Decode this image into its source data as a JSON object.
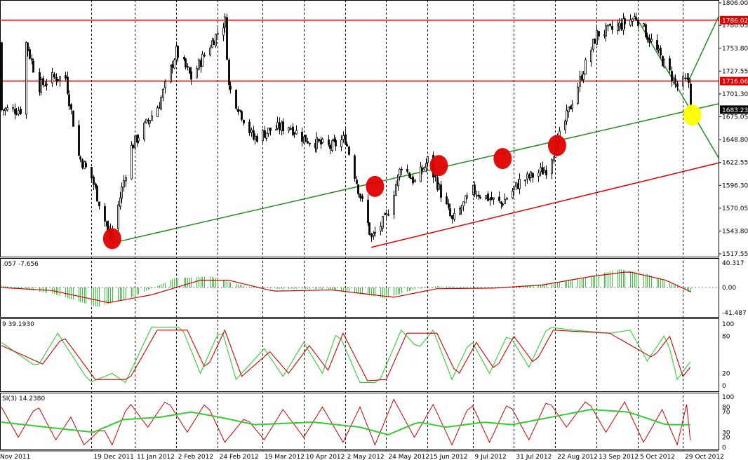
{
  "chart_data": {
    "type": "candlestick",
    "instrument": "Gold",
    "colors": {
      "candle": "#000000",
      "trendline": "#228b22",
      "level": "#e00000",
      "marker_red": "#e00000",
      "marker_yellow": "#ffff00",
      "histogram": "#33cc33",
      "signal": "#cc0000",
      "price_tag_level": "#e00000",
      "price_tag_current": "#000000"
    },
    "price_axis": {
      "ticks": [
        "1806.00",
        "1780.05",
        "1753.80",
        "1727.55",
        "1701.30",
        "1675.05",
        "1648.80",
        "1622.55",
        "1596.30",
        "1570.05",
        "1543.80",
        "1517.55"
      ],
      "ylim": [
        1517.55,
        1806.0
      ]
    },
    "price_tags": [
      {
        "value": 1786.02,
        "label": "1786.02",
        "kind": "level"
      },
      {
        "value": 1716.06,
        "label": "1716.06",
        "kind": "level"
      },
      {
        "value": 1683.23,
        "label": "1683.23",
        "kind": "current"
      }
    ],
    "x_labels": [
      "Nov 2011",
      "19 Dec 2011",
      "11 Jan 2012",
      "2 Feb 2012",
      "24 Feb 2012",
      "19 Mar 2012",
      "10 Apr 2012",
      "2 May 2012",
      "24 May 2012",
      "15 Jun 2012",
      "9 Jul 2012",
      "31 Jul 2012",
      "22 Aug 2012",
      "13 Sep 2012",
      "5 Oct 2012",
      "29 Oct 2012"
    ],
    "x_range": [
      "Nov 2011",
      "Nov 2012"
    ],
    "price_anchors": [
      {
        "date": "2011-11-14",
        "price": 1760
      },
      {
        "date": "2011-11-21",
        "price": 1710
      },
      {
        "date": "2011-11-28",
        "price": 1720
      },
      {
        "date": "2011-12-05",
        "price": 1720
      },
      {
        "date": "2011-12-12",
        "price": 1630
      },
      {
        "date": "2011-12-19",
        "price": 1605
      },
      {
        "date": "2011-12-29",
        "price": 1535
      },
      {
        "date": "2012-01-09",
        "price": 1640
      },
      {
        "date": "2012-01-24",
        "price": 1690
      },
      {
        "date": "2012-02-02",
        "price": 1750
      },
      {
        "date": "2012-02-10",
        "price": 1720
      },
      {
        "date": "2012-02-22",
        "price": 1765
      },
      {
        "date": "2012-02-28",
        "price": 1785
      },
      {
        "date": "2012-03-01",
        "price": 1710
      },
      {
        "date": "2012-03-14",
        "price": 1650
      },
      {
        "date": "2012-03-23",
        "price": 1660
      },
      {
        "date": "2012-04-02",
        "price": 1665
      },
      {
        "date": "2012-04-10",
        "price": 1650
      },
      {
        "date": "2012-04-24",
        "price": 1640
      },
      {
        "date": "2012-05-02",
        "price": 1650
      },
      {
        "date": "2012-05-16",
        "price": 1535
      },
      {
        "date": "2012-05-24",
        "price": 1560
      },
      {
        "date": "2012-06-01",
        "price": 1620
      },
      {
        "date": "2012-06-08",
        "price": 1600
      },
      {
        "date": "2012-06-15",
        "price": 1625
      },
      {
        "date": "2012-06-28",
        "price": 1555
      },
      {
        "date": "2012-07-09",
        "price": 1590
      },
      {
        "date": "2012-07-24",
        "price": 1575
      },
      {
        "date": "2012-08-03",
        "price": 1600
      },
      {
        "date": "2012-08-17",
        "price": 1615
      },
      {
        "date": "2012-08-22",
        "price": 1640
      },
      {
        "date": "2012-09-07",
        "price": 1735
      },
      {
        "date": "2012-09-13",
        "price": 1770
      },
      {
        "date": "2012-09-21",
        "price": 1775
      },
      {
        "date": "2012-10-04",
        "price": 1790
      },
      {
        "date": "2012-10-22",
        "price": 1725
      },
      {
        "date": "2012-10-26",
        "price": 1710
      },
      {
        "date": "2012-10-29",
        "price": 1715
      },
      {
        "date": "2012-11-01",
        "price": 1715
      },
      {
        "date": "2012-11-02",
        "price": 1683.23
      }
    ],
    "markers": [
      {
        "date": "2011-12-30",
        "price": 1535,
        "color": "red"
      },
      {
        "date": "2012-05-18",
        "price": 1595,
        "color": "red"
      },
      {
        "date": "2012-06-21",
        "price": 1619,
        "color": "red"
      },
      {
        "date": "2012-07-25",
        "price": 1627,
        "color": "red"
      },
      {
        "date": "2012-08-23",
        "price": 1642,
        "color": "red"
      },
      {
        "date": "2012-11-03",
        "price": 1677,
        "color": "yellow"
      }
    ],
    "trendlines": [
      {
        "color": "green",
        "from": {
          "date": "2011-12-30",
          "price": 1530
        },
        "to": {
          "date": "2012-11-17",
          "price": 1690
        }
      },
      {
        "color": "red",
        "from": {
          "date": "2012-05-16",
          "price": 1525
        },
        "to": {
          "date": "2012-11-17",
          "price": 1622
        }
      },
      {
        "color": "red",
        "from": {
          "date": "2011-11-01",
          "price": 1786.02
        },
        "to": {
          "date": "2012-11-17",
          "price": 1786.02
        }
      },
      {
        "color": "red",
        "from": {
          "date": "2011-11-01",
          "price": 1716.06
        },
        "to": {
          "date": "2012-11-17",
          "price": 1716.06
        }
      },
      {
        "color": "green",
        "from": {
          "date": "2012-10-04",
          "price": 1790
        },
        "to": {
          "date": "2012-11-17",
          "price": 1628
        }
      },
      {
        "color": "green",
        "from": {
          "date": "2012-11-01",
          "price": 1716
        },
        "to": {
          "date": "2012-11-17",
          "price": 1790
        }
      }
    ],
    "macd": {
      "label": ".057 -7.656",
      "ticks": [
        "40.317",
        "0.00",
        "-41.487"
      ],
      "ylim": [
        -41.487,
        40.317
      ],
      "histogram_anchors": [
        {
          "date": "2011-11-01",
          "value": 3
        },
        {
          "date": "2011-11-28",
          "value": -10
        },
        {
          "date": "2011-12-22",
          "value": -32
        },
        {
          "date": "2012-01-10",
          "value": -15
        },
        {
          "date": "2012-02-01",
          "value": 15
        },
        {
          "date": "2012-02-20",
          "value": 18
        },
        {
          "date": "2012-03-10",
          "value": 2
        },
        {
          "date": "2012-03-25",
          "value": -2
        },
        {
          "date": "2012-04-20",
          "value": -2
        },
        {
          "date": "2012-05-10",
          "value": -10
        },
        {
          "date": "2012-05-23",
          "value": -18
        },
        {
          "date": "2012-06-08",
          "value": -3
        },
        {
          "date": "2012-06-20",
          "value": 2
        },
        {
          "date": "2012-07-20",
          "value": 0
        },
        {
          "date": "2012-08-10",
          "value": 4
        },
        {
          "date": "2012-09-01",
          "value": 12
        },
        {
          "date": "2012-09-25",
          "value": 30
        },
        {
          "date": "2012-10-10",
          "value": 22
        },
        {
          "date": "2012-10-26",
          "value": 2
        },
        {
          "date": "2012-11-02",
          "value": -8
        }
      ],
      "signal_anchors": [
        {
          "date": "2011-11-01",
          "value": 0
        },
        {
          "date": "2011-11-28",
          "value": -5
        },
        {
          "date": "2011-12-28",
          "value": -25
        },
        {
          "date": "2012-01-20",
          "value": -12
        },
        {
          "date": "2012-02-15",
          "value": 12
        },
        {
          "date": "2012-03-01",
          "value": 12
        },
        {
          "date": "2012-03-25",
          "value": -6
        },
        {
          "date": "2012-04-25",
          "value": -4
        },
        {
          "date": "2012-05-28",
          "value": -16
        },
        {
          "date": "2012-06-20",
          "value": -2
        },
        {
          "date": "2012-07-20",
          "value": -1
        },
        {
          "date": "2012-08-15",
          "value": 4
        },
        {
          "date": "2012-09-10",
          "value": 18
        },
        {
          "date": "2012-09-30",
          "value": 26
        },
        {
          "date": "2012-10-20",
          "value": 12
        },
        {
          "date": "2012-11-02",
          "value": -7
        }
      ]
    },
    "stochastic": {
      "label": "9 39.1930",
      "ticks": [
        "100",
        "80",
        "20",
        "0"
      ],
      "ylim": [
        0,
        100
      ],
      "k_anchors": [
        {
          "date": "2011-11-01",
          "value": 70
        },
        {
          "date": "2011-11-20",
          "value": 30
        },
        {
          "date": "2011-12-01",
          "value": 85
        },
        {
          "date": "2011-12-18",
          "value": 5
        },
        {
          "date": "2011-12-30",
          "value": 20
        },
        {
          "date": "2012-01-06",
          "value": 5
        },
        {
          "date": "2012-01-20",
          "value": 95
        },
        {
          "date": "2012-02-05",
          "value": 95
        },
        {
          "date": "2012-02-15",
          "value": 20
        },
        {
          "date": "2012-02-26",
          "value": 95
        },
        {
          "date": "2012-03-05",
          "value": 10
        },
        {
          "date": "2012-03-20",
          "value": 60
        },
        {
          "date": "2012-03-30",
          "value": 15
        },
        {
          "date": "2012-04-10",
          "value": 70
        },
        {
          "date": "2012-04-20",
          "value": 20
        },
        {
          "date": "2012-04-28",
          "value": 90
        },
        {
          "date": "2012-05-10",
          "value": 5
        },
        {
          "date": "2012-05-20",
          "value": 5
        },
        {
          "date": "2012-06-01",
          "value": 90
        },
        {
          "date": "2012-06-10",
          "value": 60
        },
        {
          "date": "2012-06-18",
          "value": 90
        },
        {
          "date": "2012-06-28",
          "value": 10
        },
        {
          "date": "2012-07-08",
          "value": 75
        },
        {
          "date": "2012-07-18",
          "value": 20
        },
        {
          "date": "2012-07-28",
          "value": 85
        },
        {
          "date": "2012-08-08",
          "value": 30
        },
        {
          "date": "2012-08-18",
          "value": 95
        },
        {
          "date": "2012-09-01",
          "value": 90
        },
        {
          "date": "2012-09-20",
          "value": 85
        },
        {
          "date": "2012-10-01",
          "value": 90
        },
        {
          "date": "2012-10-10",
          "value": 40
        },
        {
          "date": "2012-10-20",
          "value": 85
        },
        {
          "date": "2012-10-26",
          "value": 10
        },
        {
          "date": "2012-11-02",
          "value": 39
        }
      ],
      "d_anchors": [
        {
          "date": "2011-11-01",
          "value": 65
        },
        {
          "date": "2011-11-23",
          "value": 35
        },
        {
          "date": "2011-12-04",
          "value": 80
        },
        {
          "date": "2011-12-21",
          "value": 10
        },
        {
          "date": "2012-01-08",
          "value": 10
        },
        {
          "date": "2012-01-23",
          "value": 90
        },
        {
          "date": "2012-02-08",
          "value": 90
        },
        {
          "date": "2012-02-18",
          "value": 25
        },
        {
          "date": "2012-02-28",
          "value": 90
        },
        {
          "date": "2012-03-08",
          "value": 15
        },
        {
          "date": "2012-03-23",
          "value": 55
        },
        {
          "date": "2012-04-02",
          "value": 20
        },
        {
          "date": "2012-04-13",
          "value": 65
        },
        {
          "date": "2012-04-23",
          "value": 25
        },
        {
          "date": "2012-05-01",
          "value": 85
        },
        {
          "date": "2012-05-14",
          "value": 8
        },
        {
          "date": "2012-05-24",
          "value": 10
        },
        {
          "date": "2012-06-04",
          "value": 85
        },
        {
          "date": "2012-06-20",
          "value": 85
        },
        {
          "date": "2012-07-01",
          "value": 15
        },
        {
          "date": "2012-07-11",
          "value": 70
        },
        {
          "date": "2012-07-21",
          "value": 25
        },
        {
          "date": "2012-07-31",
          "value": 80
        },
        {
          "date": "2012-08-11",
          "value": 35
        },
        {
          "date": "2012-08-21",
          "value": 90
        },
        {
          "date": "2012-09-20",
          "value": 85
        },
        {
          "date": "2012-10-13",
          "value": 45
        },
        {
          "date": "2012-10-22",
          "value": 80
        },
        {
          "date": "2012-10-29",
          "value": 15
        },
        {
          "date": "2012-11-02",
          "value": 30
        }
      ]
    },
    "rsi": {
      "label": "SI(3) 14.2380",
      "ticks": [
        "100",
        "80",
        "70",
        "30",
        "20",
        "0"
      ],
      "ylim": [
        0,
        100
      ],
      "fast_anchors": [
        {
          "date": "2011-11-01",
          "value": 80
        },
        {
          "date": "2011-11-10",
          "value": 20
        },
        {
          "date": "2011-11-20",
          "value": 85
        },
        {
          "date": "2011-11-30",
          "value": 15
        },
        {
          "date": "2011-12-08",
          "value": 60
        },
        {
          "date": "2011-12-15",
          "value": 5
        },
        {
          "date": "2011-12-25",
          "value": 40
        },
        {
          "date": "2011-12-30",
          "value": 5
        },
        {
          "date": "2012-01-08",
          "value": 90
        },
        {
          "date": "2012-01-18",
          "value": 40
        },
        {
          "date": "2012-01-28",
          "value": 95
        },
        {
          "date": "2012-02-08",
          "value": 30
        },
        {
          "date": "2012-02-18",
          "value": 90
        },
        {
          "date": "2012-02-28",
          "value": 10
        },
        {
          "date": "2012-03-10",
          "value": 60
        },
        {
          "date": "2012-03-20",
          "value": 15
        },
        {
          "date": "2012-03-30",
          "value": 75
        },
        {
          "date": "2012-04-10",
          "value": 20
        },
        {
          "date": "2012-04-20",
          "value": 80
        },
        {
          "date": "2012-05-01",
          "value": 10
        },
        {
          "date": "2012-05-10",
          "value": 80
        },
        {
          "date": "2012-05-18",
          "value": 5
        },
        {
          "date": "2012-05-28",
          "value": 95
        },
        {
          "date": "2012-06-08",
          "value": 20
        },
        {
          "date": "2012-06-18",
          "value": 85
        },
        {
          "date": "2012-06-28",
          "value": 5
        },
        {
          "date": "2012-07-08",
          "value": 90
        },
        {
          "date": "2012-07-18",
          "value": 10
        },
        {
          "date": "2012-07-28",
          "value": 90
        },
        {
          "date": "2012-08-08",
          "value": 15
        },
        {
          "date": "2012-08-18",
          "value": 95
        },
        {
          "date": "2012-08-28",
          "value": 40
        },
        {
          "date": "2012-09-08",
          "value": 95
        },
        {
          "date": "2012-09-18",
          "value": 30
        },
        {
          "date": "2012-09-28",
          "value": 90
        },
        {
          "date": "2012-10-08",
          "value": 10
        },
        {
          "date": "2012-10-18",
          "value": 75
        },
        {
          "date": "2012-10-26",
          "value": 5
        },
        {
          "date": "2012-10-31",
          "value": 85
        },
        {
          "date": "2012-11-02",
          "value": 14
        }
      ],
      "slow_anchors": [
        {
          "date": "2011-11-01",
          "value": 50
        },
        {
          "date": "2011-11-25",
          "value": 40
        },
        {
          "date": "2011-12-20",
          "value": 30
        },
        {
          "date": "2012-01-05",
          "value": 55
        },
        {
          "date": "2012-01-25",
          "value": 60
        },
        {
          "date": "2012-02-10",
          "value": 70
        },
        {
          "date": "2012-02-25",
          "value": 60
        },
        {
          "date": "2012-03-15",
          "value": 45
        },
        {
          "date": "2012-04-15",
          "value": 50
        },
        {
          "date": "2012-05-10",
          "value": 40
        },
        {
          "date": "2012-05-25",
          "value": 25
        },
        {
          "date": "2012-06-10",
          "value": 50
        },
        {
          "date": "2012-06-25",
          "value": 40
        },
        {
          "date": "2012-07-15",
          "value": 50
        },
        {
          "date": "2012-07-30",
          "value": 45
        },
        {
          "date": "2012-08-20",
          "value": 60
        },
        {
          "date": "2012-09-10",
          "value": 75
        },
        {
          "date": "2012-09-30",
          "value": 70
        },
        {
          "date": "2012-10-20",
          "value": 45
        },
        {
          "date": "2012-11-02",
          "value": 45
        }
      ]
    }
  }
}
